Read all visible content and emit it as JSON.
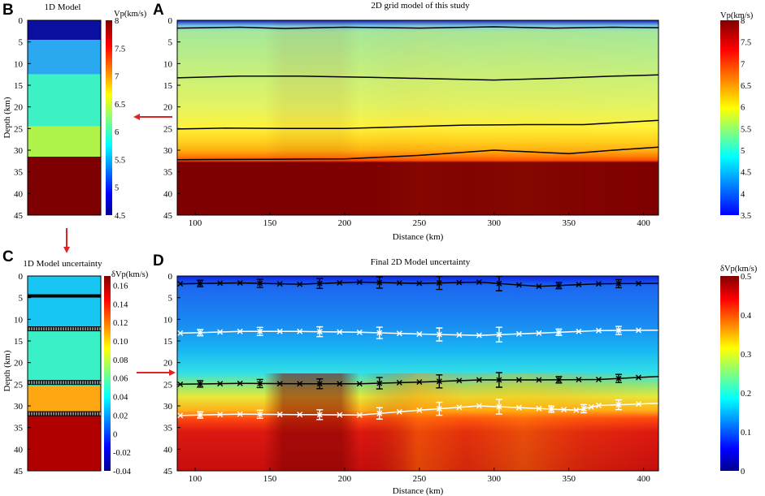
{
  "chart_data": [
    {
      "panel": "B",
      "type": "heatmap",
      "title": "1D Model",
      "ylabel": "Depth (km)",
      "ylim": [
        0,
        45
      ],
      "yticks": [
        "0",
        "5",
        "10",
        "15",
        "20",
        "25",
        "30",
        "35",
        "40",
        "45"
      ],
      "layers": [
        {
          "top": 0,
          "bottom": 4.5,
          "vp": 3.9,
          "color": "#0a0fa0"
        },
        {
          "top": 4.5,
          "bottom": 12.5,
          "vp": 5.0,
          "color": "#2aa8f0"
        },
        {
          "top": 12.5,
          "bottom": 24.5,
          "vp": 5.6,
          "color": "#3cf2c4"
        },
        {
          "top": 24.5,
          "bottom": 31.5,
          "vp": 6.6,
          "color": "#aef24a"
        },
        {
          "top": 31.5,
          "bottom": 45,
          "vp": 8.0,
          "color": "#7f0000"
        }
      ],
      "colorbar": {
        "label": "Vp(km/s)",
        "range": [
          4.5,
          8
        ],
        "ticks": [
          "8",
          "7.5",
          "7",
          "6.5",
          "6",
          "5.5",
          "5",
          "4.5"
        ]
      }
    },
    {
      "panel": "A",
      "type": "heatmap",
      "title": "2D grid model of this study",
      "xlabel": "Distance (km)",
      "xlim": [
        88,
        410
      ],
      "xticks": [
        "100",
        "150",
        "200",
        "250",
        "300",
        "350",
        "400"
      ],
      "ylim": [
        0,
        45
      ],
      "yticks": [
        "0",
        "5",
        "10",
        "15",
        "20",
        "25",
        "30",
        "35",
        "40",
        "45"
      ],
      "interfaces": [
        {
          "x": [
            88,
            130,
            160,
            200,
            250,
            300,
            340,
            380,
            410
          ],
          "depth": [
            1.8,
            1.6,
            1.9,
            1.6,
            1.8,
            1.5,
            1.8,
            1.6,
            1.7
          ]
        },
        {
          "x": [
            88,
            130,
            170,
            220,
            260,
            300,
            340,
            380,
            410
          ],
          "depth": [
            13.3,
            12.9,
            12.9,
            13.2,
            13.5,
            13.8,
            13.4,
            12.9,
            12.6
          ]
        },
        {
          "x": [
            88,
            120,
            160,
            200,
            240,
            280,
            320,
            360,
            410
          ],
          "depth": [
            25.1,
            24.9,
            25.0,
            25.0,
            24.6,
            24.2,
            24.1,
            24.1,
            23.1
          ]
        },
        {
          "x": [
            88,
            150,
            200,
            250,
            300,
            350,
            380,
            410
          ],
          "depth": [
            32.2,
            32.1,
            32.0,
            31.2,
            30.0,
            30.8,
            30.0,
            29.3
          ]
        }
      ],
      "colorbar": {
        "label": "Vp(km/s)",
        "range": [
          3.5,
          8
        ],
        "ticks": [
          "8",
          "7.5",
          "7",
          "6.5",
          "6",
          "5.5",
          "5",
          "4.5",
          "4",
          "3.5"
        ]
      }
    },
    {
      "panel": "C",
      "type": "heatmap",
      "title": "1D Model uncertainty",
      "ylabel": "Depth (km)",
      "ylim": [
        0,
        45
      ],
      "yticks": [
        "0",
        "5",
        "10",
        "15",
        "20",
        "25",
        "30",
        "35",
        "40",
        "45"
      ],
      "layers": [
        {
          "top": 0,
          "bottom": 12.5,
          "dvp": 0.06,
          "color": "#17c6f2"
        },
        {
          "top": 12.5,
          "bottom": 25.5,
          "dvp": 0.08,
          "color": "#3af0c6"
        },
        {
          "top": 25.5,
          "bottom": 31.5,
          "dvp": 0.12,
          "color": "#ffa712"
        },
        {
          "top": 31.5,
          "bottom": 45,
          "dvp": 0.17,
          "color": "#b10000"
        }
      ],
      "interface_depths": [
        4.6,
        12.2,
        24.6,
        31.8
      ],
      "colorbar": {
        "label": "δVp(km/s)",
        "range": [
          -0.04,
          0.17
        ],
        "ticks": [
          "0.16",
          "0.14",
          "0.12",
          "0.10",
          "0.08",
          "0.06",
          "0.04",
          "0.02",
          "0",
          "-0.02",
          "-0.04"
        ]
      }
    },
    {
      "panel": "D",
      "type": "heatmap",
      "title": "Final 2D Model uncertainty",
      "xlabel": "Distance (km)",
      "xlim": [
        88,
        410
      ],
      "xticks": [
        "100",
        "150",
        "200",
        "250",
        "300",
        "350",
        "400"
      ],
      "ylim": [
        0,
        45
      ],
      "yticks": [
        "0",
        "5",
        "10",
        "15",
        "20",
        "25",
        "30",
        "35",
        "40",
        "45"
      ],
      "interfaces": [
        {
          "color": "black",
          "x": [
            90,
            130,
            170,
            210,
            250,
            290,
            330,
            370,
            410
          ],
          "depth": [
            1.8,
            1.6,
            1.9,
            1.4,
            1.7,
            1.4,
            2.4,
            1.8,
            1.7
          ]
        },
        {
          "color": "white",
          "x": [
            90,
            130,
            170,
            210,
            250,
            290,
            330,
            370,
            410
          ],
          "depth": [
            13.2,
            12.8,
            12.8,
            13.0,
            13.4,
            13.7,
            13.2,
            12.6,
            12.5
          ]
        },
        {
          "color": "black",
          "x": [
            90,
            130,
            170,
            210,
            250,
            290,
            330,
            370,
            410
          ],
          "depth": [
            25.0,
            24.8,
            24.9,
            24.9,
            24.5,
            24.0,
            24.0,
            23.9,
            23.2
          ]
        },
        {
          "color": "white",
          "x": [
            90,
            130,
            170,
            210,
            250,
            290,
            330,
            355,
            370,
            410
          ],
          "depth": [
            32.2,
            31.9,
            32.0,
            32.1,
            31.0,
            30.0,
            30.6,
            31.0,
            29.9,
            29.4
          ]
        }
      ],
      "colorbar": {
        "label": "δVp(km/s)",
        "range": [
          0,
          0.5
        ],
        "ticks": [
          "0.5",
          "0.4",
          "0.3",
          "0.2",
          "0.1",
          "0"
        ]
      }
    }
  ],
  "colors": {
    "arrow": "#e02424",
    "deep_red": "#7f0000",
    "surface_blue": "#0a0fa0"
  }
}
